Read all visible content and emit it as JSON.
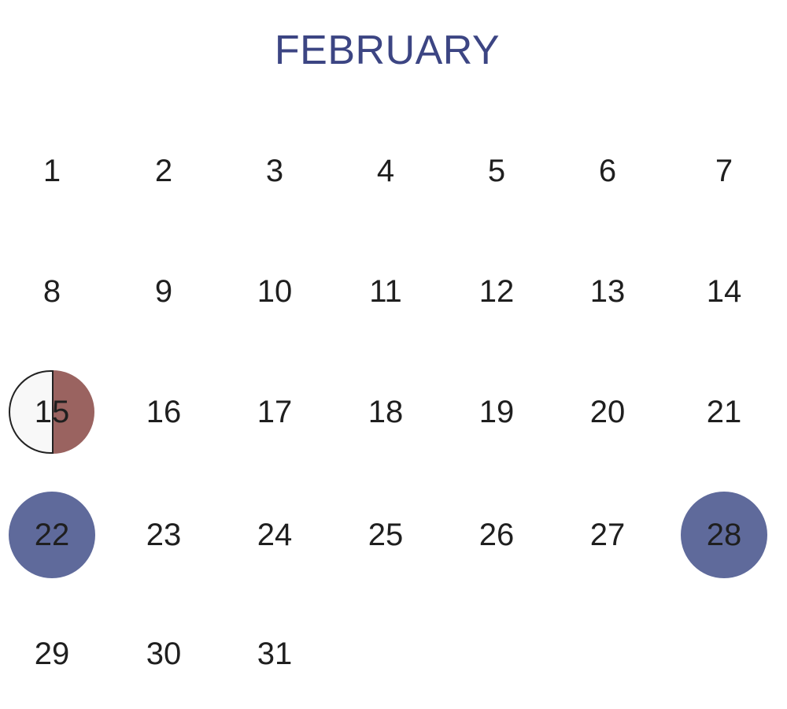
{
  "calendar": {
    "month": "FEBRUARY",
    "colors": {
      "title": "#3c4583",
      "highlight": "#5f6a9b",
      "half_marker": "#9a6360"
    },
    "days": [
      {
        "label": "1"
      },
      {
        "label": "2"
      },
      {
        "label": "3"
      },
      {
        "label": "4"
      },
      {
        "label": "5"
      },
      {
        "label": "6"
      },
      {
        "label": "7"
      },
      {
        "label": "8"
      },
      {
        "label": "9"
      },
      {
        "label": "10"
      },
      {
        "label": "11"
      },
      {
        "label": "12"
      },
      {
        "label": "13"
      },
      {
        "label": "14"
      },
      {
        "label": "15",
        "marker": "half"
      },
      {
        "label": "16"
      },
      {
        "label": "17"
      },
      {
        "label": "18"
      },
      {
        "label": "19"
      },
      {
        "label": "20"
      },
      {
        "label": "21"
      },
      {
        "label": "22",
        "marker": "filled"
      },
      {
        "label": "23"
      },
      {
        "label": "24"
      },
      {
        "label": "25"
      },
      {
        "label": "26"
      },
      {
        "label": "27"
      },
      {
        "label": "28",
        "marker": "filled"
      },
      {
        "label": "29"
      },
      {
        "label": "30"
      },
      {
        "label": "31"
      }
    ]
  }
}
